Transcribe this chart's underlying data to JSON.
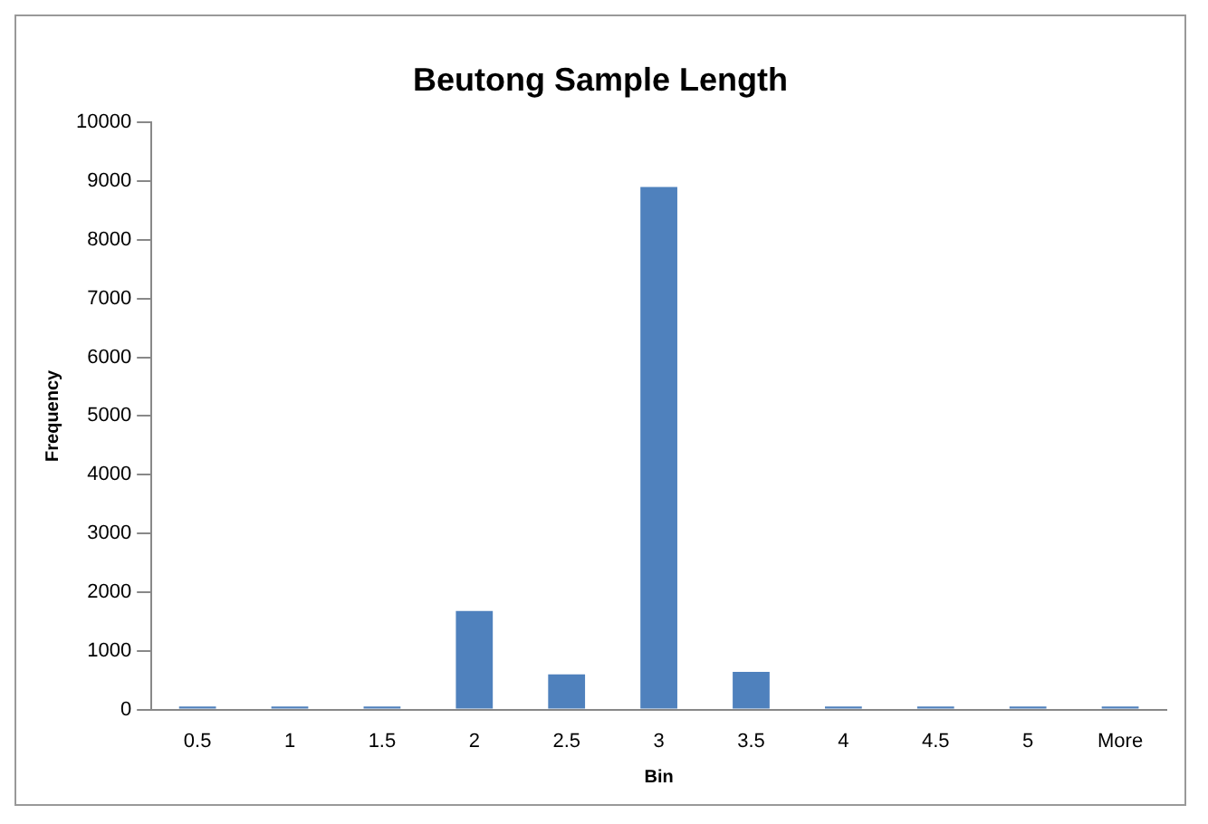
{
  "chart_data": {
    "type": "bar",
    "title": "Beutong Sample Length",
    "xlabel": "Bin",
    "ylabel": "Frequency",
    "categories": [
      "0.5",
      "1",
      "1.5",
      "2",
      "2.5",
      "3",
      "3.5",
      "4",
      "4.5",
      "5",
      "More"
    ],
    "values": [
      50,
      50,
      50,
      1680,
      600,
      8900,
      640,
      50,
      50,
      50,
      50
    ],
    "color": "#4f81bd",
    "ylim": [
      0,
      10000
    ],
    "yticks": [
      0,
      1000,
      2000,
      3000,
      4000,
      5000,
      6000,
      7000,
      8000,
      9000,
      10000
    ],
    "grid": false,
    "legend": false
  }
}
